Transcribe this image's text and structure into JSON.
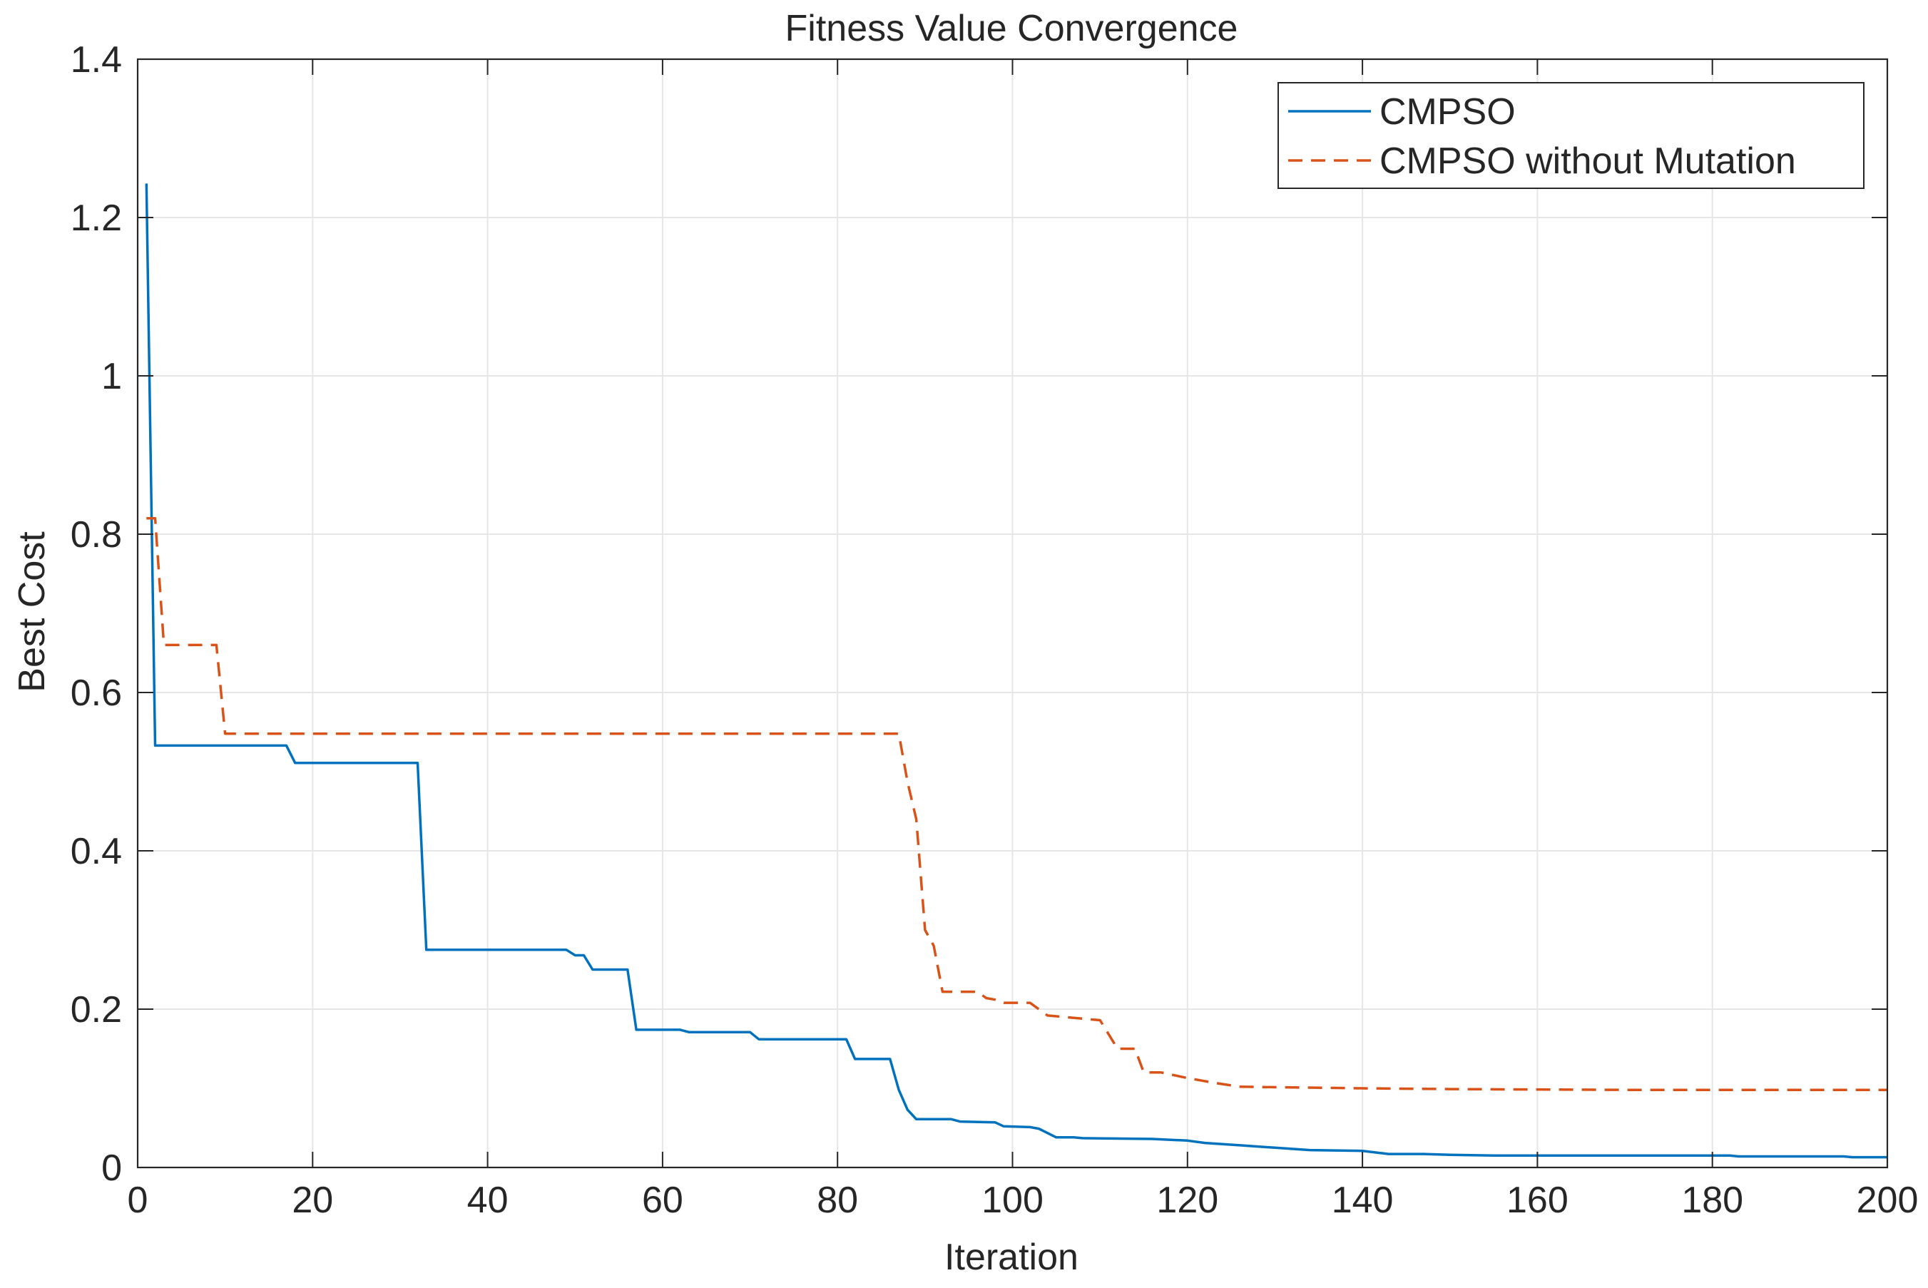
{
  "chart_data": {
    "type": "line",
    "title": "Fitness Value Convergence",
    "xlabel": "Iteration",
    "ylabel": "Best Cost",
    "xlim": [
      0,
      200
    ],
    "ylim": [
      0,
      1.4
    ],
    "xticks": [
      0,
      20,
      40,
      60,
      80,
      100,
      120,
      140,
      160,
      180,
      200
    ],
    "yticks": [
      0,
      0.2,
      0.4,
      0.6,
      0.8,
      1,
      1.2,
      1.4
    ],
    "xtick_labels": [
      "0",
      "20",
      "40",
      "60",
      "80",
      "100",
      "120",
      "140",
      "160",
      "180",
      "200"
    ],
    "ytick_labels": [
      "0",
      "0.2",
      "0.4",
      "0.6",
      "0.8",
      "1",
      "1.2",
      "1.4"
    ],
    "grid": true,
    "legend_position": "top-right",
    "series": [
      {
        "name": "CMPSO",
        "color": "#0072BD",
        "line_style": "solid",
        "points": [
          [
            1,
            1.243
          ],
          [
            2,
            0.533
          ],
          [
            17,
            0.533
          ],
          [
            18,
            0.511
          ],
          [
            32,
            0.511
          ],
          [
            33,
            0.275
          ],
          [
            49,
            0.275
          ],
          [
            50,
            0.268
          ],
          [
            51,
            0.268
          ],
          [
            52,
            0.25
          ],
          [
            56,
            0.25
          ],
          [
            57,
            0.174
          ],
          [
            62,
            0.174
          ],
          [
            63,
            0.171
          ],
          [
            70,
            0.171
          ],
          [
            71,
            0.162
          ],
          [
            81,
            0.162
          ],
          [
            82,
            0.137
          ],
          [
            86,
            0.137
          ],
          [
            87,
            0.098
          ],
          [
            88,
            0.073
          ],
          [
            89,
            0.061
          ],
          [
            93,
            0.061
          ],
          [
            94,
            0.058
          ],
          [
            98,
            0.057
          ],
          [
            99,
            0.052
          ],
          [
            102,
            0.051
          ],
          [
            103,
            0.049
          ],
          [
            105,
            0.038
          ],
          [
            107,
            0.038
          ],
          [
            108,
            0.037
          ],
          [
            116,
            0.036
          ],
          [
            120,
            0.034
          ],
          [
            122,
            0.031
          ],
          [
            126,
            0.028
          ],
          [
            130,
            0.025
          ],
          [
            134,
            0.022
          ],
          [
            140,
            0.021
          ],
          [
            143,
            0.017
          ],
          [
            147,
            0.017
          ],
          [
            150,
            0.016
          ],
          [
            155,
            0.015
          ],
          [
            160,
            0.015
          ],
          [
            170,
            0.015
          ],
          [
            182,
            0.015
          ],
          [
            183,
            0.014
          ],
          [
            195,
            0.014
          ],
          [
            196,
            0.013
          ],
          [
            200,
            0.013
          ]
        ]
      },
      {
        "name": "CMPSO without Mutation",
        "color": "#D95319",
        "line_style": "dashed",
        "points": [
          [
            1,
            0.82
          ],
          [
            2,
            0.82
          ],
          [
            3,
            0.66
          ],
          [
            9,
            0.66
          ],
          [
            10,
            0.548
          ],
          [
            87,
            0.548
          ],
          [
            88,
            0.487
          ],
          [
            89,
            0.44
          ],
          [
            90,
            0.3
          ],
          [
            91,
            0.28
          ],
          [
            92,
            0.222
          ],
          [
            96,
            0.222
          ],
          [
            97,
            0.214
          ],
          [
            98,
            0.212
          ],
          [
            99,
            0.208
          ],
          [
            102,
            0.208
          ],
          [
            103,
            0.2
          ],
          [
            104,
            0.192
          ],
          [
            106,
            0.19
          ],
          [
            110,
            0.186
          ],
          [
            112,
            0.15
          ],
          [
            114,
            0.15
          ],
          [
            115,
            0.12
          ],
          [
            117,
            0.12
          ],
          [
            120,
            0.113
          ],
          [
            123,
            0.107
          ],
          [
            126,
            0.102
          ],
          [
            140,
            0.1
          ],
          [
            150,
            0.099
          ],
          [
            170,
            0.098
          ],
          [
            200,
            0.098
          ]
        ]
      }
    ]
  }
}
